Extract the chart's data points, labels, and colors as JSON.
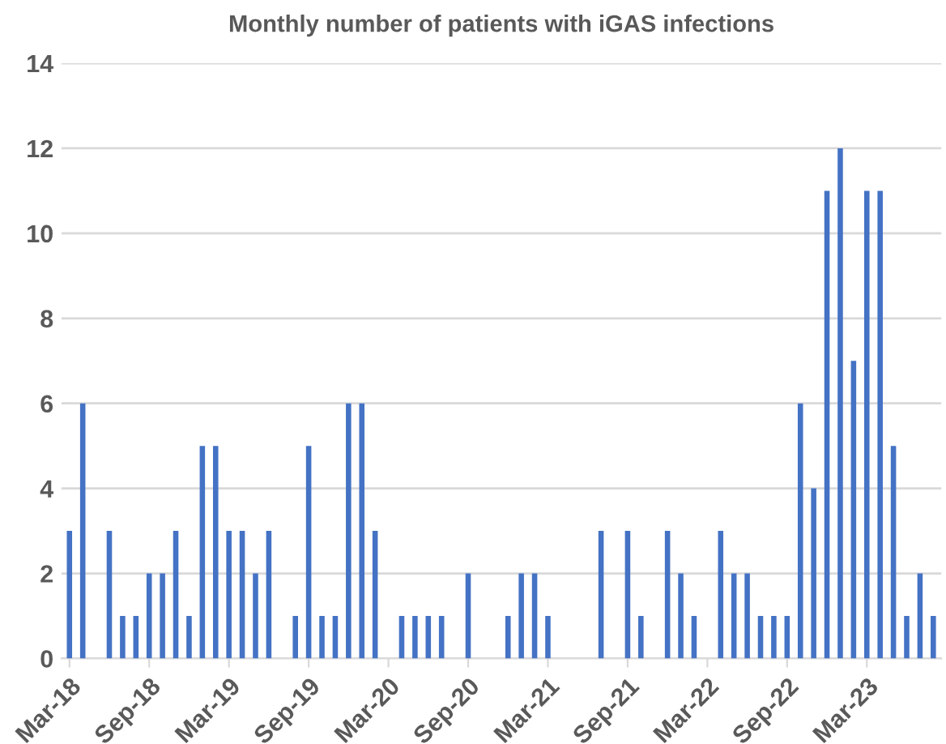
{
  "chart_data": {
    "type": "bar",
    "title": "Monthly number of patients with iGAS infections",
    "categories": [
      "Mar-18",
      null,
      null,
      null,
      null,
      null,
      "Sep-18",
      null,
      null,
      null,
      null,
      null,
      "Mar-19",
      null,
      null,
      null,
      null,
      null,
      "Sep-19",
      null,
      null,
      null,
      null,
      null,
      "Mar-20",
      null,
      null,
      null,
      null,
      null,
      "Sep-20",
      null,
      null,
      null,
      null,
      null,
      "Mar-21",
      null,
      null,
      null,
      null,
      null,
      "Sep-21",
      null,
      null,
      null,
      null,
      null,
      "Mar-22",
      null,
      null,
      null,
      null,
      null,
      "Sep-22",
      null,
      null,
      null,
      null,
      null,
      "Mar-23",
      null,
      null,
      null,
      null,
      null
    ],
    "values": [
      3,
      6,
      0,
      3,
      1,
      1,
      2,
      2,
      3,
      1,
      5,
      5,
      3,
      3,
      2,
      3,
      0,
      1,
      5,
      1,
      1,
      6,
      6,
      3,
      0,
      1,
      1,
      1,
      1,
      0,
      2,
      0,
      0,
      1,
      2,
      2,
      1,
      0,
      0,
      0,
      3,
      0,
      3,
      1,
      0,
      3,
      2,
      1,
      0,
      3,
      2,
      2,
      1,
      1,
      1,
      6,
      4,
      11,
      12,
      7,
      11,
      11,
      5,
      1,
      2,
      1
    ],
    "color": "#4472c4",
    "ylim": [
      0,
      14
    ],
    "yticks": [
      0,
      2,
      4,
      6,
      8,
      10,
      12,
      14
    ],
    "grid": "y"
  }
}
